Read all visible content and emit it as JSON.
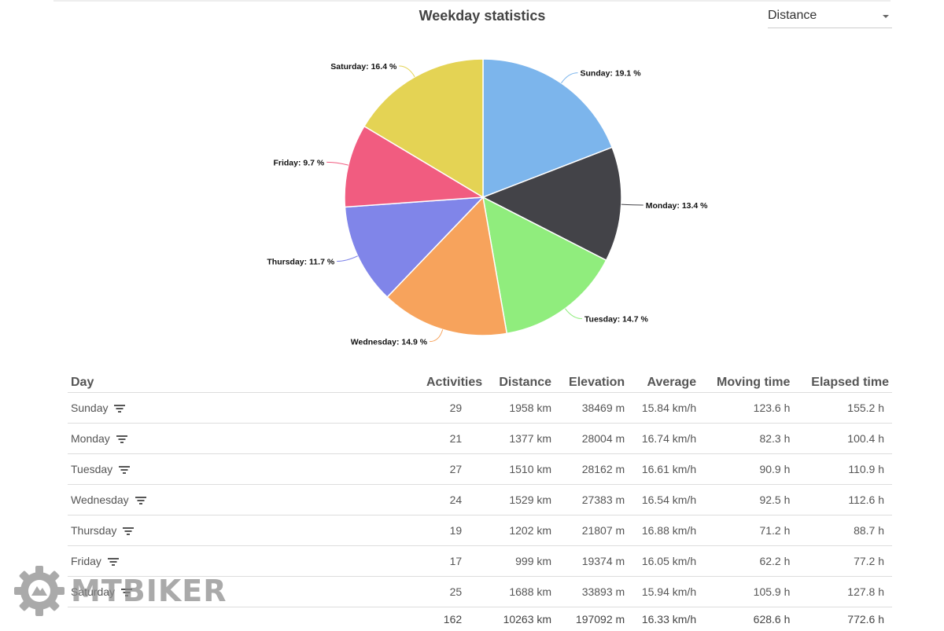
{
  "header": {
    "title": "Weekday statistics",
    "metric_select": {
      "value": "Distance"
    }
  },
  "chart_data": {
    "type": "pie",
    "title": "Weekday statistics",
    "slices": [
      {
        "name": "Sunday",
        "value": 19.1,
        "label": "Sunday: 19.1 %",
        "color": "#7cb5ec"
      },
      {
        "name": "Monday",
        "value": 13.4,
        "label": "Monday: 13.4 %",
        "color": "#434348"
      },
      {
        "name": "Tuesday",
        "value": 14.7,
        "label": "Tuesday: 14.7 %",
        "color": "#90ed7d"
      },
      {
        "name": "Wednesday",
        "value": 14.9,
        "label": "Wednesday: 14.9 %",
        "color": "#f7a35c"
      },
      {
        "name": "Thursday",
        "value": 11.7,
        "label": "Thursday: 11.7 %",
        "color": "#8085e9"
      },
      {
        "name": "Friday",
        "value": 9.7,
        "label": "Friday: 9.7 %",
        "color": "#f15c80"
      },
      {
        "name": "Saturday",
        "value": 16.4,
        "label": "Saturday: 16.4 %",
        "color": "#e4d354"
      }
    ]
  },
  "table": {
    "columns": [
      "Day",
      "Activities",
      "Distance",
      "Elevation",
      "Average",
      "Moving time",
      "Elapsed time"
    ],
    "rows": [
      {
        "day": "Sunday",
        "activities": "29",
        "distance": "1958 km",
        "elevation": "38469 m",
        "average": "15.84 km/h",
        "moving": "123.6 h",
        "elapsed": "155.2 h"
      },
      {
        "day": "Monday",
        "activities": "21",
        "distance": "1377 km",
        "elevation": "28004 m",
        "average": "16.74 km/h",
        "moving": "82.3 h",
        "elapsed": "100.4 h"
      },
      {
        "day": "Tuesday",
        "activities": "27",
        "distance": "1510 km",
        "elevation": "28162 m",
        "average": "16.61 km/h",
        "moving": "90.9 h",
        "elapsed": "110.9 h"
      },
      {
        "day": "Wednesday",
        "activities": "24",
        "distance": "1529 km",
        "elevation": "27383 m",
        "average": "16.54 km/h",
        "moving": "92.5 h",
        "elapsed": "112.6 h"
      },
      {
        "day": "Thursday",
        "activities": "19",
        "distance": "1202 km",
        "elevation": "21807 m",
        "average": "16.88 km/h",
        "moving": "71.2 h",
        "elapsed": "88.7 h"
      },
      {
        "day": "Friday",
        "activities": "17",
        "distance": "999 km",
        "elevation": "19374 m",
        "average": "16.05 km/h",
        "moving": "62.2 h",
        "elapsed": "77.2 h"
      },
      {
        "day": "Saturday",
        "activities": "25",
        "distance": "1688 km",
        "elevation": "33893 m",
        "average": "15.94 km/h",
        "moving": "105.9 h",
        "elapsed": "127.8 h"
      }
    ],
    "totals": {
      "day": "",
      "activities": "162",
      "distance": "10263 km",
      "elevation": "197092 m",
      "average": "16.33 km/h",
      "moving": "628.6 h",
      "elapsed": "772.6 h"
    }
  },
  "watermark": {
    "text": "MTBIKER",
    "icon": "gear-logo-icon"
  }
}
